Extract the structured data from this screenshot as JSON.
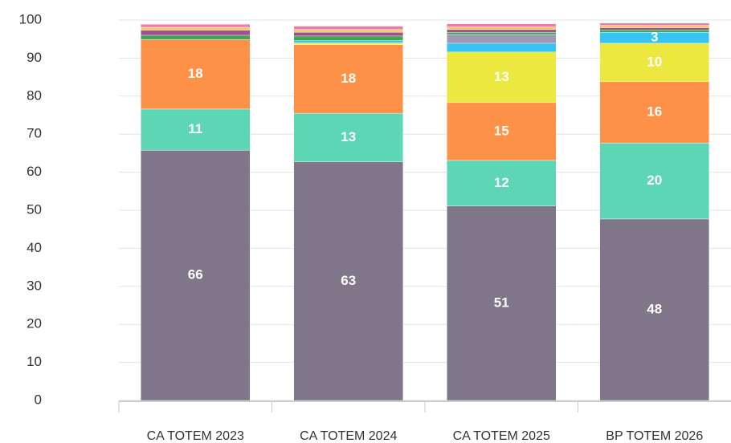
{
  "chart_data": {
    "type": "stacked_bar",
    "categories": [
      "CA TOTEM 2023",
      "CA TOTEM 2024",
      "CA TOTEM 2025",
      "BP TOTEM 2026"
    ],
    "series": [
      {
        "color": "#7f7689",
        "values": [
          65.8,
          62.7,
          51.1,
          47.7
        ],
        "value_labels": [
          "66",
          "63",
          "51",
          "48"
        ]
      },
      {
        "color": "#5dd6b6",
        "values": [
          10.8,
          12.8,
          12.0,
          20.0
        ],
        "value_labels": [
          "11",
          "13",
          "12",
          "20"
        ]
      },
      {
        "color": "#fd9147",
        "values": [
          18.3,
          18.0,
          15.2,
          16.1
        ],
        "value_labels": [
          "18",
          "18",
          "15",
          "16"
        ]
      },
      {
        "color": "#ede83f",
        "values": [
          0,
          0.5,
          13.3,
          10.1
        ],
        "value_labels": [
          null,
          null,
          "13",
          "10"
        ]
      },
      {
        "color": "#36c5f0",
        "values": [
          0,
          0.6,
          2.3,
          2.9
        ],
        "value_labels": [
          null,
          null,
          null,
          "3"
        ]
      },
      {
        "color": "#9e98b3",
        "values": [
          0,
          0,
          2.3,
          0
        ]
      },
      {
        "color": "#3aa757",
        "values": [
          1.1,
          1.2,
          0.6,
          0.6
        ]
      },
      {
        "color": "#a0508a",
        "values": [
          1.3,
          1.0,
          0.7,
          0.6
        ]
      },
      {
        "color": "#f8c66e",
        "values": [
          0.8,
          0.7,
          0.7,
          0.6
        ]
      },
      {
        "color": "#f27aa8",
        "values": [
          0.8,
          0.9,
          0.8,
          0.6
        ]
      }
    ],
    "ylim": [
      0,
      100
    ],
    "yticks": [
      0,
      10,
      20,
      30,
      40,
      50,
      60,
      70,
      80,
      90,
      100
    ],
    "grid": true
  }
}
